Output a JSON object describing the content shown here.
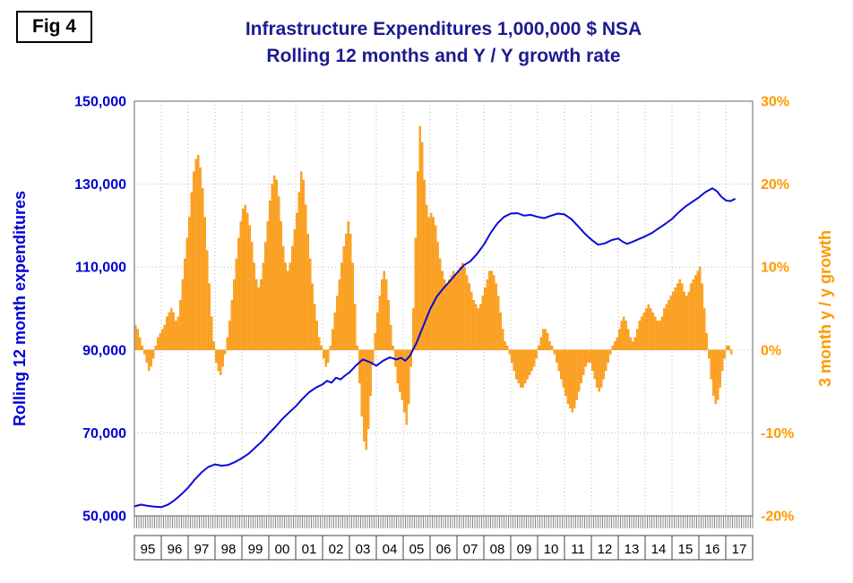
{
  "figure": {
    "label": "Fig 4"
  },
  "colors": {
    "title": "#1c1c8f",
    "left_axis_text": "#0000d2",
    "right_axis_text": "#ff9900",
    "bar_fill": "#ffa629",
    "bar_stroke": "#f08c00",
    "line": "#0b0bd6",
    "grid": "#b5b5b5",
    "plot_border": "#808080",
    "comb_tick": "#555555",
    "year_text": "#000000",
    "year_cell_border": "#444444"
  },
  "chart_data": {
    "type": "combo_bar_line",
    "title_line1": "Infrastructure Expenditures 1,000,000 $ NSA",
    "title_line2": "Rolling 12 months and Y / Y growth rate",
    "grid": {
      "vertical": "dotted at each year boundary",
      "horizontal": "dotted at labeled ticks"
    },
    "x_axis": {
      "range": [
        1995,
        2018
      ],
      "year_labels": [
        "95",
        "96",
        "97",
        "98",
        "99",
        "00",
        "01",
        "02",
        "03",
        "04",
        "05",
        "06",
        "07",
        "08",
        "09",
        "10",
        "11",
        "12",
        "13",
        "14",
        "15",
        "16",
        "17"
      ]
    },
    "y_left": {
      "label": "Rolling 12 month expenditures",
      "range": [
        50000,
        150000
      ],
      "ticks": [
        {
          "v": 150000,
          "label": "150,000"
        },
        {
          "v": 130000,
          "label": "130,000"
        },
        {
          "v": 110000,
          "label": "110,000"
        },
        {
          "v": 90000,
          "label": "90,000"
        },
        {
          "v": 70000,
          "label": "70,000"
        },
        {
          "v": 50000,
          "label": "50,000"
        }
      ]
    },
    "y_right": {
      "label": "3 month y / y growth",
      "range": [
        -20,
        30
      ],
      "ticks": [
        {
          "v": 30,
          "label": "30%"
        },
        {
          "v": 20,
          "label": "20%"
        },
        {
          "v": 10,
          "label": "10%"
        },
        {
          "v": 0,
          "label": "0%"
        },
        {
          "v": -10,
          "label": "-10%"
        },
        {
          "v": -20,
          "label": "-20%"
        }
      ]
    },
    "series": [
      {
        "name": "Rolling 12 month expenditures",
        "type": "line",
        "axis": "left",
        "points": [
          [
            1995.0,
            52300
          ],
          [
            1995.25,
            52700
          ],
          [
            1995.5,
            52400
          ],
          [
            1995.75,
            52200
          ],
          [
            1996.0,
            52100
          ],
          [
            1996.25,
            52700
          ],
          [
            1996.5,
            53800
          ],
          [
            1996.75,
            55200
          ],
          [
            1997.0,
            56800
          ],
          [
            1997.25,
            58800
          ],
          [
            1997.5,
            60500
          ],
          [
            1997.75,
            61800
          ],
          [
            1998.0,
            62400
          ],
          [
            1998.25,
            62100
          ],
          [
            1998.5,
            62300
          ],
          [
            1998.75,
            63000
          ],
          [
            1999.0,
            63900
          ],
          [
            1999.25,
            65000
          ],
          [
            1999.5,
            66500
          ],
          [
            1999.75,
            68000
          ],
          [
            2000.0,
            69800
          ],
          [
            2000.25,
            71500
          ],
          [
            2000.5,
            73300
          ],
          [
            2000.75,
            74900
          ],
          [
            2001.0,
            76400
          ],
          [
            2001.25,
            78200
          ],
          [
            2001.5,
            79800
          ],
          [
            2001.75,
            80900
          ],
          [
            2002.0,
            81700
          ],
          [
            2002.17,
            82600
          ],
          [
            2002.33,
            82100
          ],
          [
            2002.5,
            83300
          ],
          [
            2002.67,
            82900
          ],
          [
            2002.83,
            83800
          ],
          [
            2003.0,
            84600
          ],
          [
            2003.25,
            86300
          ],
          [
            2003.5,
            87700
          ],
          [
            2003.75,
            87100
          ],
          [
            2004.0,
            86200
          ],
          [
            2004.25,
            87400
          ],
          [
            2004.5,
            88200
          ],
          [
            2004.75,
            87700
          ],
          [
            2004.92,
            88100
          ],
          [
            2005.08,
            87400
          ],
          [
            2005.25,
            88600
          ],
          [
            2005.5,
            91800
          ],
          [
            2005.75,
            95800
          ],
          [
            2006.0,
            99800
          ],
          [
            2006.25,
            102900
          ],
          [
            2006.5,
            104900
          ],
          [
            2006.75,
            106700
          ],
          [
            2007.0,
            108600
          ],
          [
            2007.25,
            110400
          ],
          [
            2007.5,
            111400
          ],
          [
            2007.75,
            113200
          ],
          [
            2008.0,
            115400
          ],
          [
            2008.25,
            118200
          ],
          [
            2008.5,
            120500
          ],
          [
            2008.75,
            122100
          ],
          [
            2009.0,
            122900
          ],
          [
            2009.25,
            123000
          ],
          [
            2009.5,
            122400
          ],
          [
            2009.75,
            122600
          ],
          [
            2010.0,
            122100
          ],
          [
            2010.25,
            121800
          ],
          [
            2010.5,
            122400
          ],
          [
            2010.75,
            122900
          ],
          [
            2011.0,
            122700
          ],
          [
            2011.25,
            121600
          ],
          [
            2011.5,
            119900
          ],
          [
            2011.75,
            118100
          ],
          [
            2012.0,
            116600
          ],
          [
            2012.25,
            115400
          ],
          [
            2012.5,
            115700
          ],
          [
            2012.75,
            116500
          ],
          [
            2013.0,
            116900
          ],
          [
            2013.17,
            116100
          ],
          [
            2013.33,
            115600
          ],
          [
            2013.5,
            116000
          ],
          [
            2013.75,
            116700
          ],
          [
            2014.0,
            117400
          ],
          [
            2014.25,
            118200
          ],
          [
            2014.5,
            119300
          ],
          [
            2014.75,
            120400
          ],
          [
            2015.0,
            121600
          ],
          [
            2015.25,
            123200
          ],
          [
            2015.5,
            124600
          ],
          [
            2015.75,
            125700
          ],
          [
            2016.0,
            126800
          ],
          [
            2016.25,
            128100
          ],
          [
            2016.5,
            129000
          ],
          [
            2016.67,
            128300
          ],
          [
            2016.83,
            127000
          ],
          [
            2017.0,
            126100
          ],
          [
            2017.17,
            125900
          ],
          [
            2017.33,
            126400
          ]
        ]
      },
      {
        "name": "3 month y / y growth rate",
        "type": "bar",
        "axis": "right",
        "monthly_pct": {
          "1995": [
            3,
            2.5,
            1.5,
            0.5,
            -0.5,
            -1.5,
            -2.5,
            -2,
            -1,
            0.5,
            1.5,
            2
          ],
          "1996": [
            2.5,
            3,
            4,
            4.5,
            5,
            4.5,
            3.5,
            4,
            6,
            8.5,
            11,
            13.5
          ],
          "1997": [
            16,
            19,
            21.5,
            23,
            23.5,
            22,
            19.5,
            16,
            12,
            8,
            4,
            1
          ],
          "1998": [
            -1.5,
            -2.5,
            -3,
            -2,
            -0.5,
            1.5,
            3.5,
            6,
            8.5,
            11,
            13.5,
            15.5
          ],
          "1999": [
            17,
            17.5,
            16.5,
            15,
            13,
            10.5,
            8.5,
            7.5,
            8.5,
            10.5,
            13,
            15.5
          ],
          "2000": [
            18,
            20,
            21,
            20.5,
            18.5,
            15.5,
            12.5,
            10.5,
            9.5,
            10.5,
            12.5,
            14.5
          ],
          "2001": [
            16.5,
            19,
            21.5,
            20.5,
            17.5,
            14,
            11,
            8,
            5.5,
            3.5,
            1.5,
            0.5
          ],
          "2002": [
            -1,
            -2,
            -1.5,
            0.5,
            2.5,
            4.5,
            6.5,
            8.5,
            10.5,
            12.5,
            14,
            15.5
          ],
          "2003": [
            14,
            10.5,
            5.5,
            0.5,
            -4,
            -8,
            -11,
            -12,
            -9.5,
            -5.5,
            -1.5,
            2
          ],
          "2004": [
            4.5,
            6.5,
            8.5,
            9.5,
            8.5,
            6,
            3,
            0.5,
            -2,
            -4,
            -5,
            -6
          ],
          "2005": [
            -7.5,
            -9,
            -6.5,
            -2,
            5,
            13.5,
            21.5,
            27,
            25,
            20.5,
            17.5,
            16
          ],
          "2006": [
            16.5,
            16,
            15,
            13,
            11,
            9.5,
            8.5,
            8,
            8.5,
            9,
            9.5,
            9
          ],
          "2007": [
            9.5,
            10,
            10.5,
            10,
            9,
            8,
            7,
            6,
            5.5,
            5,
            5.5,
            6.5
          ],
          "2008": [
            7.5,
            8.5,
            9.5,
            9.5,
            9,
            8,
            6.5,
            4.5,
            2.5,
            1,
            0.5,
            -0.5
          ],
          "2009": [
            -1.5,
            -2.5,
            -3.5,
            -4,
            -4.5,
            -4.5,
            -4,
            -3.5,
            -3,
            -2.5,
            -2,
            -1
          ],
          "2010": [
            0.5,
            1.5,
            2.5,
            2.5,
            2,
            1,
            0.5,
            -0.5,
            -1.5,
            -2.5,
            -3.5,
            -4.5
          ],
          "2011": [
            -5.5,
            -6.5,
            -7,
            -7.5,
            -7,
            -6,
            -5,
            -4,
            -3,
            -2,
            -1.5,
            -1.5
          ],
          "2012": [
            -2.5,
            -3.5,
            -4.5,
            -5,
            -4.5,
            -3.5,
            -2.5,
            -1.5,
            -0.5,
            0.5,
            1,
            1.5
          ],
          "2013": [
            2.5,
            3.5,
            4,
            3.5,
            2.5,
            1.5,
            1,
            1.5,
            2.5,
            3.5,
            4,
            4.5
          ],
          "2014": [
            5,
            5.5,
            5,
            4.5,
            4,
            3.5,
            3.5,
            4,
            5,
            5.5,
            6,
            6.5
          ],
          "2015": [
            7,
            7.5,
            8,
            8.5,
            8,
            7,
            6.5,
            7,
            8,
            8.5,
            9,
            9.5
          ],
          "2016": [
            10,
            8,
            5,
            2,
            -1,
            -3.5,
            -5.5,
            -6.5,
            -6,
            -4.5,
            -2.5,
            -1
          ],
          "2017": [
            0.5,
            0.5,
            -0.5
          ]
        }
      }
    ]
  }
}
